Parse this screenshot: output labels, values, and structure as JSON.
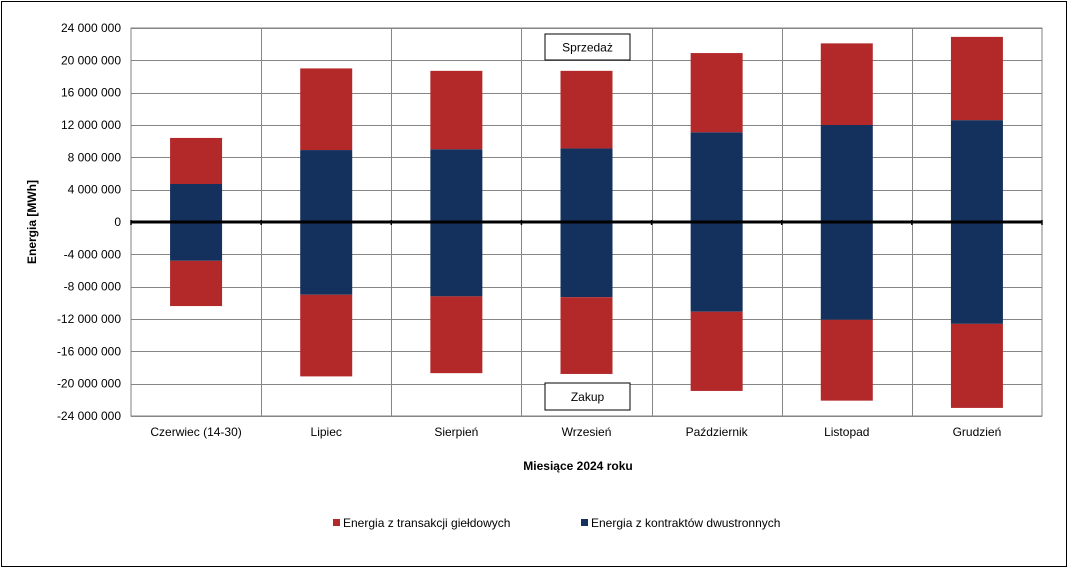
{
  "chart_data": {
    "type": "bar",
    "stacked": true,
    "diverging": true,
    "categories": [
      "Czerwiec (14-30)",
      "Lipiec",
      "Sierpień",
      "Wrzesień",
      "Październik",
      "Listopad",
      "Grudzień"
    ],
    "series": [
      {
        "name": "Energia z kontraktów dwustronnych",
        "color": "#14305C",
        "values_sale": [
          4700000,
          8900000,
          9000000,
          9100000,
          11100000,
          12000000,
          12600000
        ],
        "values_purchase": [
          -4800000,
          -9000000,
          -9200000,
          -9300000,
          -11100000,
          -12100000,
          -12600000
        ]
      },
      {
        "name": "Energia z transakcji giełdowych",
        "color": "#B3292A",
        "values_sale": [
          5700000,
          10100000,
          9700000,
          9600000,
          9800000,
          10100000,
          10300000
        ],
        "values_purchase": [
          -5600000,
          -10100000,
          -9500000,
          -9500000,
          -9800000,
          -10000000,
          -10400000
        ]
      }
    ],
    "xlabel": "Miesiące 2024  roku",
    "ylabel": "Energia [MWh]",
    "ylim": [
      -24000000,
      24000000
    ],
    "ytick_step": 4000000,
    "ytick_labels": [
      "24 000 000",
      "20 000 000",
      "16 000 000",
      "12 000 000",
      "8 000 000",
      "4 000 000",
      "0",
      "-4 000 000",
      "-8 000 000",
      "-12 000 000",
      "-16 000 000",
      "-20 000 000",
      "-24 000 000"
    ],
    "annotations": {
      "sale": "Sprzedaż",
      "purchase": "Zakup"
    },
    "grid": true,
    "legend_position": "bottom",
    "legend_order": [
      "Energia z transakcji giełdowych",
      "Energia z kontraktów dwustronnych"
    ]
  }
}
